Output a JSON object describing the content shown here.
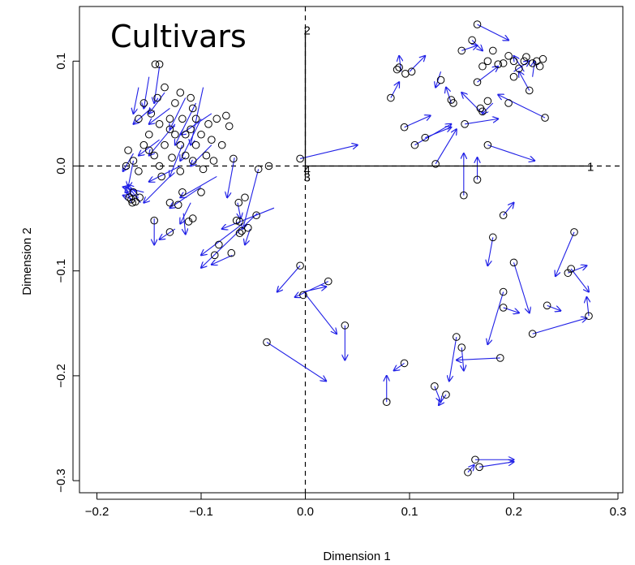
{
  "chart_data": {
    "type": "scatter",
    "title": "Cultivars",
    "xlabel": "Dimension 1",
    "ylabel": "Dimension 2",
    "xlim": [
      -0.2,
      0.3
    ],
    "ylim": [
      -0.3,
      0.1
    ],
    "x_ticks": [
      -0.2,
      -0.1,
      0.0,
      0.1,
      0.2,
      0.3
    ],
    "x_tick_labels": [
      "−0.2",
      "−0.1",
      "0.0",
      "0.1",
      "0.2",
      "0.3"
    ],
    "y_ticks": [
      -0.3,
      -0.2,
      -0.1,
      0.0,
      0.1
    ],
    "y_tick_labels": [
      "−0.3",
      "−0.2",
      "−0.1",
      "0.0",
      "0.1"
    ],
    "grid": false,
    "point_color": "#000000",
    "arrow_color": "#1f1fe6",
    "reference_lines": {
      "x": 0,
      "y": 0,
      "style": "dashed"
    },
    "axis_vectors": [
      {
        "label": "1",
        "x": 0.272,
        "y": 0.0
      },
      {
        "label": "2",
        "x": 0.0,
        "y": 0.13
      },
      {
        "label": "3",
        "x": 0.0,
        "y": -0.01
      },
      {
        "label": "4",
        "x": 0.0,
        "y": -0.003
      }
    ],
    "arrows": [
      {
        "x": -0.005,
        "y": 0.007,
        "x2": 0.05,
        "y2": 0.02
      },
      {
        "x": -0.005,
        "y": -0.095,
        "x2": -0.027,
        "y2": -0.12
      },
      {
        "x": -0.002,
        "y": -0.12,
        "x2": 0.02,
        "y2": -0.115
      },
      {
        "x": 0.022,
        "y": -0.11,
        "x2": -0.01,
        "y2": -0.125
      },
      {
        "x": 0.0,
        "y": -0.122,
        "x2": 0.03,
        "y2": -0.16
      },
      {
        "x": 0.038,
        "y": -0.152,
        "x2": 0.038,
        "y2": -0.185
      },
      {
        "x": -0.037,
        "y": -0.168,
        "x2": 0.02,
        "y2": -0.205
      },
      {
        "x": -0.03,
        "y": -0.04,
        "x2": -0.08,
        "y2": -0.06
      },
      {
        "x": -0.046,
        "y": -0.045,
        "x2": -0.1,
        "y2": -0.097
      },
      {
        "x": -0.053,
        "y": -0.06,
        "x2": -0.058,
        "y2": -0.075
      },
      {
        "x": -0.06,
        "y": -0.055,
        "x2": -0.1,
        "y2": -0.085
      },
      {
        "x": -0.07,
        "y": -0.085,
        "x2": -0.09,
        "y2": -0.094
      },
      {
        "x": -0.045,
        "y": -0.003,
        "x2": -0.06,
        "y2": -0.06
      },
      {
        "x": -0.068,
        "y": 0.008,
        "x2": -0.075,
        "y2": -0.03
      },
      {
        "x": -0.065,
        "y": -0.035,
        "x2": -0.062,
        "y2": -0.05
      },
      {
        "x": -0.085,
        "y": -0.01,
        "x2": -0.12,
        "y2": -0.03
      },
      {
        "x": -0.098,
        "y": 0.075,
        "x2": -0.11,
        "y2": 0.02
      },
      {
        "x": -0.105,
        "y": 0.06,
        "x2": -0.125,
        "y2": 0.02
      },
      {
        "x": -0.1,
        "y": 0.045,
        "x2": -0.12,
        "y2": 0.005
      },
      {
        "x": -0.09,
        "y": 0.05,
        "x2": -0.12,
        "y2": 0.03
      },
      {
        "x": -0.115,
        "y": 0.065,
        "x2": -0.13,
        "y2": 0.035
      },
      {
        "x": -0.125,
        "y": 0.04,
        "x2": -0.15,
        "y2": 0.01
      },
      {
        "x": -0.135,
        "y": 0.07,
        "x2": -0.15,
        "y2": 0.05
      },
      {
        "x": -0.14,
        "y": 0.095,
        "x2": -0.145,
        "y2": 0.06
      },
      {
        "x": -0.15,
        "y": 0.085,
        "x2": -0.155,
        "y2": 0.055
      },
      {
        "x": -0.148,
        "y": 0.055,
        "x2": -0.165,
        "y2": 0.04
      },
      {
        "x": -0.12,
        "y": 0.0,
        "x2": -0.15,
        "y2": -0.015
      },
      {
        "x": -0.13,
        "y": -0.01,
        "x2": -0.155,
        "y2": -0.035
      },
      {
        "x": -0.1,
        "y": -0.02,
        "x2": -0.13,
        "y2": -0.04
      },
      {
        "x": -0.11,
        "y": -0.035,
        "x2": -0.12,
        "y2": -0.055
      },
      {
        "x": -0.145,
        "y": -0.05,
        "x2": -0.145,
        "y2": -0.075
      },
      {
        "x": -0.125,
        "y": -0.06,
        "x2": -0.14,
        "y2": -0.07
      },
      {
        "x": -0.117,
        "y": -0.045,
        "x2": -0.115,
        "y2": -0.065
      },
      {
        "x": -0.09,
        "y": 0.02,
        "x2": -0.11,
        "y2": 0.0
      },
      {
        "x": -0.16,
        "y": 0.075,
        "x2": -0.165,
        "y2": 0.05
      },
      {
        "x": -0.165,
        "y": 0.005,
        "x2": -0.17,
        "y2": -0.02
      },
      {
        "x": -0.155,
        "y": -0.025,
        "x2": -0.175,
        "y2": -0.02
      },
      {
        "x": -0.16,
        "y": -0.03,
        "x2": -0.172,
        "y2": -0.025
      },
      {
        "x": -0.158,
        "y": -0.035,
        "x2": -0.168,
        "y2": -0.022
      },
      {
        "x": -0.163,
        "y": -0.033,
        "x2": -0.175,
        "y2": -0.028
      },
      {
        "x": -0.16,
        "y": -0.028,
        "x2": -0.17,
        "y2": -0.018
      },
      {
        "x": -0.167,
        "y": -0.035,
        "x2": -0.172,
        "y2": -0.02
      },
      {
        "x": -0.165,
        "y": 0.012,
        "x2": -0.175,
        "y2": -0.005
      },
      {
        "x": -0.14,
        "y": 0.025,
        "x2": -0.16,
        "y2": 0.01
      },
      {
        "x": -0.13,
        "y": 0.055,
        "x2": -0.15,
        "y2": 0.04
      },
      {
        "x": -0.118,
        "y": 0.02,
        "x2": -0.13,
        "y2": -0.01
      },
      {
        "x": 0.092,
        "y": 0.09,
        "x2": 0.09,
        "y2": 0.105
      },
      {
        "x": 0.1,
        "y": 0.09,
        "x2": 0.115,
        "y2": 0.105
      },
      {
        "x": 0.082,
        "y": 0.065,
        "x2": 0.09,
        "y2": 0.08
      },
      {
        "x": 0.13,
        "y": 0.09,
        "x2": 0.125,
        "y2": 0.075
      },
      {
        "x": 0.14,
        "y": 0.06,
        "x2": 0.135,
        "y2": 0.075
      },
      {
        "x": 0.15,
        "y": 0.11,
        "x2": 0.165,
        "y2": 0.115
      },
      {
        "x": 0.16,
        "y": 0.12,
        "x2": 0.17,
        "y2": 0.11
      },
      {
        "x": 0.165,
        "y": 0.135,
        "x2": 0.195,
        "y2": 0.12
      },
      {
        "x": 0.21,
        "y": 0.09,
        "x2": 0.2,
        "y2": 0.105
      },
      {
        "x": 0.2,
        "y": 0.09,
        "x2": 0.215,
        "y2": 0.1
      },
      {
        "x": 0.165,
        "y": 0.08,
        "x2": 0.185,
        "y2": 0.095
      },
      {
        "x": 0.18,
        "y": 0.06,
        "x2": 0.17,
        "y2": 0.05
      },
      {
        "x": 0.17,
        "y": 0.05,
        "x2": 0.15,
        "y2": 0.07
      },
      {
        "x": 0.215,
        "y": 0.072,
        "x2": 0.205,
        "y2": 0.09
      },
      {
        "x": 0.218,
        "y": 0.085,
        "x2": 0.22,
        "y2": 0.1
      },
      {
        "x": 0.23,
        "y": 0.046,
        "x2": 0.185,
        "y2": 0.068
      },
      {
        "x": 0.095,
        "y": 0.037,
        "x2": 0.12,
        "y2": 0.048
      },
      {
        "x": 0.105,
        "y": 0.02,
        "x2": 0.14,
        "y2": 0.04
      },
      {
        "x": 0.115,
        "y": 0.027,
        "x2": 0.14,
        "y2": 0.037
      },
      {
        "x": 0.153,
        "y": 0.04,
        "x2": 0.185,
        "y2": 0.045
      },
      {
        "x": 0.125,
        "y": 0.002,
        "x2": 0.145,
        "y2": 0.035
      },
      {
        "x": 0.175,
        "y": 0.02,
        "x2": 0.22,
        "y2": 0.005
      },
      {
        "x": 0.152,
        "y": -0.028,
        "x2": 0.152,
        "y2": 0.012
      },
      {
        "x": 0.165,
        "y": -0.013,
        "x2": 0.165,
        "y2": 0.008
      },
      {
        "x": 0.19,
        "y": -0.047,
        "x2": 0.2,
        "y2": -0.035
      },
      {
        "x": 0.18,
        "y": -0.068,
        "x2": 0.175,
        "y2": -0.095
      },
      {
        "x": 0.2,
        "y": -0.092,
        "x2": 0.215,
        "y2": -0.14
      },
      {
        "x": 0.19,
        "y": -0.12,
        "x2": 0.175,
        "y2": -0.17
      },
      {
        "x": 0.19,
        "y": -0.135,
        "x2": 0.205,
        "y2": -0.14
      },
      {
        "x": 0.218,
        "y": -0.16,
        "x2": 0.27,
        "y2": -0.145
      },
      {
        "x": 0.258,
        "y": -0.063,
        "x2": 0.24,
        "y2": -0.105
      },
      {
        "x": 0.252,
        "y": -0.102,
        "x2": 0.27,
        "y2": -0.095
      },
      {
        "x": 0.255,
        "y": -0.098,
        "x2": 0.272,
        "y2": -0.12
      },
      {
        "x": 0.272,
        "y": -0.143,
        "x2": 0.27,
        "y2": -0.125
      },
      {
        "x": 0.232,
        "y": -0.133,
        "x2": 0.245,
        "y2": -0.138
      },
      {
        "x": 0.187,
        "y": -0.183,
        "x2": 0.145,
        "y2": -0.185
      },
      {
        "x": 0.145,
        "y": -0.163,
        "x2": 0.138,
        "y2": -0.205
      },
      {
        "x": 0.15,
        "y": -0.173,
        "x2": 0.152,
        "y2": -0.195
      },
      {
        "x": 0.095,
        "y": -0.188,
        "x2": 0.085,
        "y2": -0.195
      },
      {
        "x": 0.078,
        "y": -0.225,
        "x2": 0.078,
        "y2": -0.2
      },
      {
        "x": 0.124,
        "y": -0.21,
        "x2": 0.13,
        "y2": -0.225
      },
      {
        "x": 0.135,
        "y": -0.218,
        "x2": 0.128,
        "y2": -0.228
      },
      {
        "x": 0.163,
        "y": -0.28,
        "x2": 0.2,
        "y2": -0.28
      },
      {
        "x": 0.167,
        "y": -0.287,
        "x2": 0.2,
        "y2": -0.282
      },
      {
        "x": 0.156,
        "y": -0.292,
        "x2": 0.162,
        "y2": -0.285
      }
    ],
    "points": [
      [
        -0.17,
        0.015
      ],
      [
        -0.165,
        0.005
      ],
      [
        -0.172,
        0.0
      ],
      [
        -0.16,
        -0.005
      ],
      [
        -0.155,
        0.02
      ],
      [
        -0.15,
        0.03
      ],
      [
        -0.145,
        0.01
      ],
      [
        -0.14,
        0.04
      ],
      [
        -0.13,
        0.045
      ],
      [
        -0.125,
        0.03
      ],
      [
        -0.12,
        0.02
      ],
      [
        -0.115,
        0.01
      ],
      [
        -0.11,
        0.035
      ],
      [
        -0.105,
        0.02
      ],
      [
        -0.1,
        0.03
      ],
      [
        -0.095,
        0.01
      ],
      [
        -0.135,
        0.02
      ],
      [
        -0.128,
        0.008
      ],
      [
        -0.14,
        0.0
      ],
      [
        -0.118,
        0.045
      ],
      [
        -0.108,
        0.055
      ],
      [
        -0.125,
        0.06
      ],
      [
        -0.135,
        0.075
      ],
      [
        -0.155,
        0.06
      ],
      [
        -0.16,
        0.045
      ],
      [
        -0.148,
        0.05
      ],
      [
        -0.142,
        0.065
      ],
      [
        -0.12,
        0.07
      ],
      [
        -0.11,
        0.065
      ],
      [
        -0.093,
        0.04
      ],
      [
        -0.09,
        0.025
      ],
      [
        -0.105,
        0.045
      ],
      [
        -0.115,
        0.03
      ],
      [
        -0.13,
        0.035
      ],
      [
        -0.15,
        0.015
      ],
      [
        -0.12,
        -0.005
      ],
      [
        -0.108,
        0.005
      ],
      [
        -0.098,
        -0.003
      ],
      [
        -0.088,
        0.005
      ],
      [
        -0.08,
        0.02
      ],
      [
        -0.073,
        0.038
      ],
      [
        -0.076,
        0.048
      ],
      [
        -0.085,
        0.045
      ],
      [
        -0.14,
        0.097
      ],
      [
        -0.144,
        0.097
      ],
      [
        -0.1,
        -0.025
      ],
      [
        -0.108,
        -0.05
      ],
      [
        -0.112,
        -0.053
      ],
      [
        -0.13,
        -0.063
      ],
      [
        -0.145,
        -0.052
      ],
      [
        -0.13,
        -0.035
      ],
      [
        -0.122,
        -0.037
      ],
      [
        -0.118,
        -0.025
      ],
      [
        -0.138,
        -0.01
      ],
      [
        -0.163,
        -0.034
      ],
      [
        -0.166,
        -0.035
      ],
      [
        -0.169,
        -0.03
      ],
      [
        -0.159,
        -0.03
      ],
      [
        -0.165,
        -0.025
      ],
      [
        -0.167,
        -0.032
      ],
      [
        -0.063,
        -0.053
      ],
      [
        -0.066,
        -0.052
      ],
      [
        -0.055,
        -0.059
      ],
      [
        -0.061,
        -0.062
      ],
      [
        -0.063,
        -0.064
      ],
      [
        -0.083,
        -0.075
      ],
      [
        -0.087,
        -0.085
      ],
      [
        -0.071,
        -0.083
      ],
      [
        -0.047,
        -0.047
      ],
      [
        -0.064,
        -0.035
      ],
      [
        -0.035,
        0.0
      ],
      [
        -0.058,
        -0.03
      ],
      [
        -0.069,
        0.007
      ],
      [
        -0.045,
        -0.003
      ],
      [
        0.088,
        0.092
      ],
      [
        0.09,
        0.094
      ],
      [
        0.096,
        0.088
      ],
      [
        0.102,
        0.09
      ],
      [
        0.082,
        0.065
      ],
      [
        0.13,
        0.082
      ],
      [
        0.14,
        0.063
      ],
      [
        0.142,
        0.06
      ],
      [
        0.15,
        0.11
      ],
      [
        0.16,
        0.12
      ],
      [
        0.165,
        0.135
      ],
      [
        0.17,
        0.095
      ],
      [
        0.175,
        0.1
      ],
      [
        0.18,
        0.11
      ],
      [
        0.185,
        0.097
      ],
      [
        0.19,
        0.098
      ],
      [
        0.195,
        0.105
      ],
      [
        0.2,
        0.1
      ],
      [
        0.205,
        0.093
      ],
      [
        0.21,
        0.1
      ],
      [
        0.212,
        0.104
      ],
      [
        0.218,
        0.098
      ],
      [
        0.222,
        0.1
      ],
      [
        0.225,
        0.095
      ],
      [
        0.228,
        0.102
      ],
      [
        0.2,
        0.085
      ],
      [
        0.165,
        0.08
      ],
      [
        0.215,
        0.072
      ],
      [
        0.23,
        0.046
      ],
      [
        0.175,
        0.062
      ],
      [
        0.168,
        0.055
      ],
      [
        0.17,
        0.052
      ],
      [
        0.195,
        0.06
      ],
      [
        0.095,
        0.037
      ],
      [
        0.105,
        0.02
      ],
      [
        0.115,
        0.027
      ],
      [
        0.153,
        0.04
      ],
      [
        0.125,
        0.002
      ],
      [
        0.175,
        0.02
      ],
      [
        0.152,
        -0.028
      ],
      [
        0.165,
        -0.013
      ],
      [
        -0.005,
        0.007
      ],
      [
        -0.005,
        -0.095
      ],
      [
        -0.002,
        -0.123
      ],
      [
        0.022,
        -0.11
      ],
      [
        0.038,
        -0.152
      ],
      [
        -0.037,
        -0.168
      ],
      [
        0.19,
        -0.047
      ],
      [
        0.18,
        -0.068
      ],
      [
        0.2,
        -0.092
      ],
      [
        0.19,
        -0.12
      ],
      [
        0.19,
        -0.135
      ],
      [
        0.218,
        -0.16
      ],
      [
        0.258,
        -0.063
      ],
      [
        0.252,
        -0.102
      ],
      [
        0.255,
        -0.098
      ],
      [
        0.272,
        -0.143
      ],
      [
        0.232,
        -0.133
      ],
      [
        0.187,
        -0.183
      ],
      [
        0.145,
        -0.163
      ],
      [
        0.15,
        -0.173
      ],
      [
        0.095,
        -0.188
      ],
      [
        0.078,
        -0.225
      ],
      [
        0.124,
        -0.21
      ],
      [
        0.135,
        -0.218
      ],
      [
        0.163,
        -0.28
      ],
      [
        0.167,
        -0.287
      ],
      [
        0.156,
        -0.292
      ]
    ]
  }
}
